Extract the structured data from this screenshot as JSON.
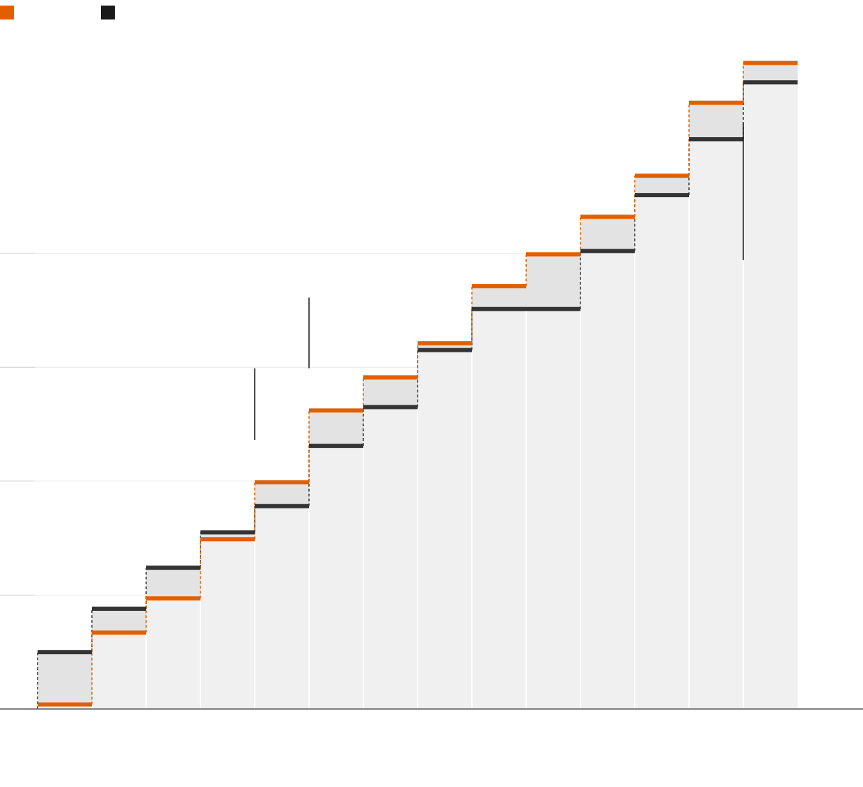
{
  "chart_data": {
    "type": "area",
    "title": "",
    "xlabel": "",
    "ylabel": "",
    "ylim": [
      0,
      50
    ],
    "yticks": [
      10,
      20,
      30,
      40
    ],
    "grid": true,
    "legend_placement": "top-left",
    "colors": {
      "orange": "#E06000",
      "black": "#1A1A1A",
      "step_dark": "#333333",
      "area_light": "#F0F0F0",
      "diff_fill": "#E3E3E3",
      "grid": "#E6E6E6",
      "axis": "#555555"
    },
    "legend": [
      {
        "name": "",
        "color": "#E06000"
      },
      {
        "name": "",
        "color": "#1A1A1A"
      }
    ],
    "categories": [
      "",
      "",
      "",
      "",
      "",
      "",
      "",
      "",
      "",
      "",
      "",
      "",
      "",
      ""
    ],
    "series": [
      {
        "key": "orange",
        "values": [
          0.4,
          6.7,
          9.7,
          14.9,
          19.9,
          26.2,
          29.1,
          32.1,
          37.1,
          39.9,
          43.2,
          46.8,
          53.2,
          56.7
        ]
      },
      {
        "key": "black",
        "values": [
          5.0,
          8.8,
          12.4,
          15.5,
          17.8,
          23.1,
          26.5,
          31.5,
          35.1,
          35.1,
          40.2,
          45.1,
          50.0,
          55.0
        ]
      }
    ],
    "annotations": [
      {
        "text": "",
        "category_index": 4.5,
        "y_from": 23.6,
        "y_to": 29.9
      },
      {
        "text": "",
        "category_index": 5.5,
        "y_from": 29.9,
        "y_to": 36.1
      },
      {
        "text": "",
        "category_index": 13.5,
        "y_from": 39.4,
        "y_to": 51.4
      }
    ]
  }
}
